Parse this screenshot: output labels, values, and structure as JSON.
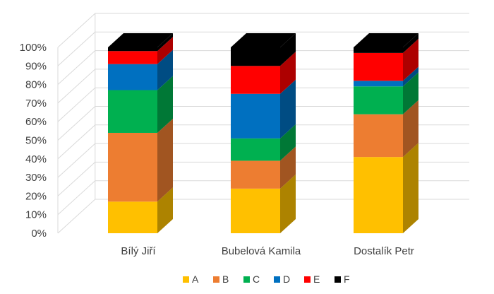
{
  "chart_data": {
    "type": "bar",
    "stacked": true,
    "percent_stacked": true,
    "three_d": true,
    "categories": [
      "Bílý Jiří",
      "Bubelová Kamila",
      "Dostalík Petr"
    ],
    "series": [
      {
        "name": "A",
        "color": "#FFC000",
        "values": [
          17,
          24,
          41
        ]
      },
      {
        "name": "B",
        "color": "#ED7D31",
        "values": [
          37,
          15,
          23
        ]
      },
      {
        "name": "C",
        "color": "#00B050",
        "values": [
          23,
          12,
          15
        ]
      },
      {
        "name": "D",
        "color": "#0070C0",
        "values": [
          14,
          24,
          3
        ]
      },
      {
        "name": "E",
        "color": "#FF0000",
        "values": [
          7,
          15,
          15
        ]
      },
      {
        "name": "F",
        "color": "#000000",
        "values": [
          2,
          10,
          3
        ]
      }
    ],
    "y_ticks": [
      "0%",
      "10%",
      "20%",
      "30%",
      "40%",
      "50%",
      "60%",
      "70%",
      "80%",
      "90%",
      "100%"
    ],
    "ylim": [
      0,
      100
    ],
    "grid": true,
    "legend_position": "bottom"
  }
}
